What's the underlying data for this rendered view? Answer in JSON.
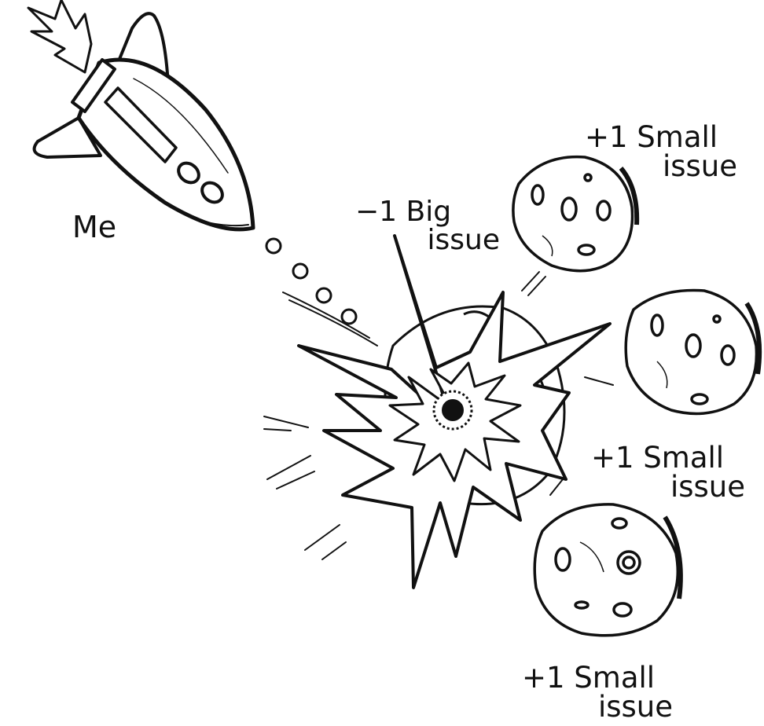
{
  "labels": {
    "rocket": "Me",
    "big_issue": {
      "line1": "−1 Big",
      "line2": "issue"
    },
    "small_issue_top": {
      "line1": "+1 Small",
      "line2": "issue"
    },
    "small_issue_middle": {
      "line1": "+1 Small",
      "line2": "issue"
    },
    "small_issue_bottom": {
      "line1": "+1 Small",
      "line2": "issue"
    }
  },
  "colors": {
    "ink": "#111111",
    "paper": "#ffffff"
  }
}
